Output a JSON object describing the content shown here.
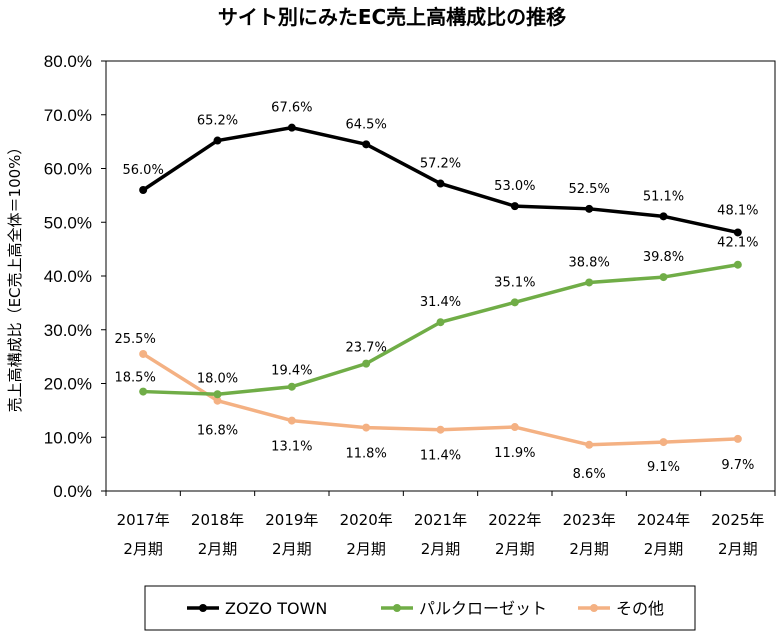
{
  "chart_data": {
    "type": "line",
    "title": "サイト別にみたEC売上高構成比の推移",
    "ylabel": "売上高構成比（EC売上高全体＝100%）",
    "xlabel": "",
    "ylim": [
      0,
      80
    ],
    "yticks": [
      "0.0%",
      "10.0%",
      "20.0%",
      "30.0%",
      "40.0%",
      "50.0%",
      "60.0%",
      "70.0%",
      "80.0%"
    ],
    "categories": [
      [
        "2017年",
        "2月期"
      ],
      [
        "2018年",
        "2月期"
      ],
      [
        "2019年",
        "2月期"
      ],
      [
        "2020年",
        "2月期"
      ],
      [
        "2021年",
        "2月期"
      ],
      [
        "2022年",
        "2月期"
      ],
      [
        "2023年",
        "2月期"
      ],
      [
        "2024年",
        "2月期"
      ],
      [
        "2025年",
        "2月期"
      ]
    ],
    "grid": false,
    "legend_position": "bottom",
    "series": [
      {
        "name": "ZOZO TOWN",
        "color": "#000000",
        "values": [
          56.0,
          65.2,
          67.6,
          64.5,
          57.2,
          53.0,
          52.5,
          51.1,
          48.1
        ],
        "labels": [
          "56.0%",
          "65.2%",
          "67.6%",
          "64.5%",
          "57.2%",
          "53.0%",
          "52.5%",
          "51.1%",
          "48.1%"
        ]
      },
      {
        "name": "パルクローゼット",
        "color": "#70ad47",
        "values": [
          18.5,
          18.0,
          19.4,
          23.7,
          31.4,
          35.1,
          38.8,
          39.8,
          42.1
        ],
        "labels": [
          "18.5%",
          "18.0%",
          "19.4%",
          "23.7%",
          "31.4%",
          "35.1%",
          "38.8%",
          "39.8%",
          "42.1%"
        ]
      },
      {
        "name": "その他",
        "color": "#f4b183",
        "values": [
          25.5,
          16.8,
          13.1,
          11.8,
          11.4,
          11.9,
          8.6,
          9.1,
          9.7
        ],
        "labels": [
          "25.5%",
          "16.8%",
          "13.1%",
          "11.8%",
          "11.4%",
          "11.9%",
          "8.6%",
          "9.1%",
          "9.7%"
        ]
      }
    ]
  }
}
